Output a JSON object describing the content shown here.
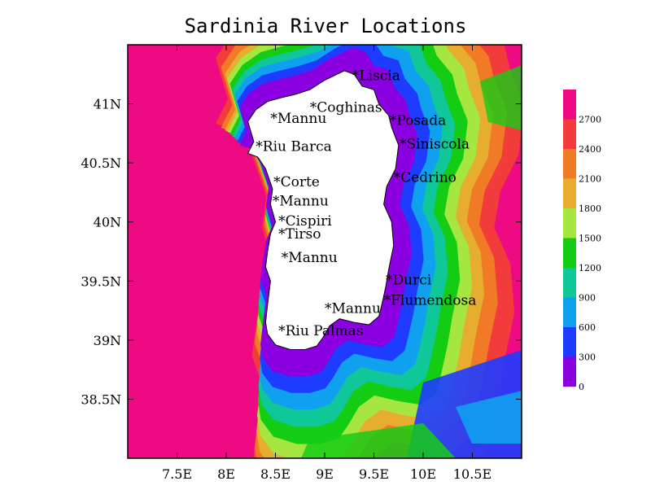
{
  "title": "Sardinia River Locations",
  "colors": {
    "bands": [
      "#8b00e0",
      "#1e3cff",
      "#0fa0f0",
      "#10c79a",
      "#15cc15",
      "#a5e640",
      "#e6ad2e",
      "#f07a26",
      "#f23c3c",
      "#ee0a82"
    ],
    "land": "#ffffff",
    "coast": "#000000"
  },
  "chart_data": {
    "type": "map",
    "title": "Sardinia River Locations",
    "xlim": [
      7.0,
      11.0
    ],
    "ylim": [
      38.0,
      41.5
    ],
    "x_ticks": [
      {
        "value": 7.5,
        "label": "7.5E"
      },
      {
        "value": 8.0,
        "label": "8E"
      },
      {
        "value": 8.5,
        "label": "8.5E"
      },
      {
        "value": 9.0,
        "label": "9E"
      },
      {
        "value": 9.5,
        "label": "9.5E"
      },
      {
        "value": 10.0,
        "label": "10E"
      },
      {
        "value": 10.5,
        "label": "10.5E"
      }
    ],
    "y_ticks": [
      {
        "value": 41.0,
        "label": "41N"
      },
      {
        "value": 40.5,
        "label": "40.5N"
      },
      {
        "value": 40.0,
        "label": "40N"
      },
      {
        "value": 39.5,
        "label": "39.5N"
      },
      {
        "value": 39.0,
        "label": "39N"
      },
      {
        "value": 38.5,
        "label": "38.5N"
      }
    ],
    "colorbar": {
      "levels": [
        "0",
        "300",
        "600",
        "900",
        "1200",
        "1500",
        "1800",
        "2100",
        "2400",
        "2700"
      ]
    },
    "rivers": [
      {
        "name": "*Liscia",
        "lon": 9.28,
        "lat": 41.2
      },
      {
        "name": "*Coghinas",
        "lon": 8.85,
        "lat": 40.93
      },
      {
        "name": "*Mannu",
        "lon": 8.45,
        "lat": 40.84
      },
      {
        "name": "*Posada",
        "lon": 9.66,
        "lat": 40.82
      },
      {
        "name": "*Siniscola",
        "lon": 9.76,
        "lat": 40.62
      },
      {
        "name": "*Riu Barca",
        "lon": 8.3,
        "lat": 40.6
      },
      {
        "name": "*Cedrino",
        "lon": 9.7,
        "lat": 40.34
      },
      {
        "name": "*Corte",
        "lon": 8.48,
        "lat": 40.3
      },
      {
        "name": "*Mannu",
        "lon": 8.47,
        "lat": 40.14
      },
      {
        "name": "*Cispiri",
        "lon": 8.53,
        "lat": 39.97
      },
      {
        "name": "*Tirso",
        "lon": 8.53,
        "lat": 39.86
      },
      {
        "name": "*Mannu",
        "lon": 8.56,
        "lat": 39.66
      },
      {
        "name": "*Durci",
        "lon": 9.62,
        "lat": 39.47
      },
      {
        "name": "*Flumendosa",
        "lon": 9.6,
        "lat": 39.3
      },
      {
        "name": "*Mannu",
        "lon": 9.0,
        "lat": 39.23
      },
      {
        "name": "*Riu Palmas",
        "lon": 8.53,
        "lat": 39.04
      }
    ]
  }
}
